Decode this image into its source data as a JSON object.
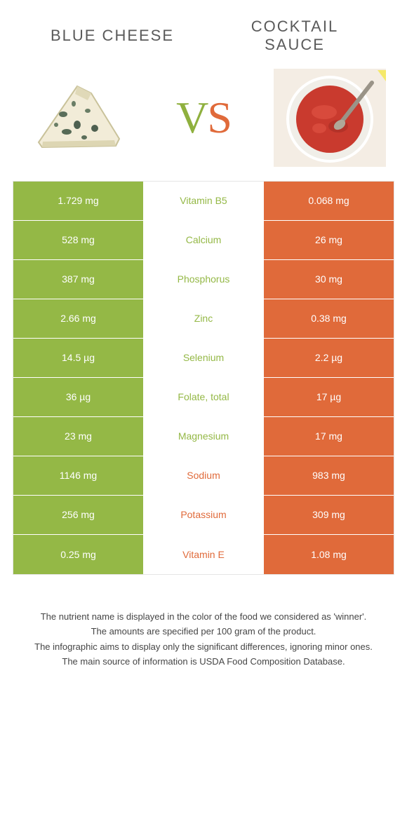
{
  "colors": {
    "green": "#94b846",
    "orange": "#e06a3a",
    "mid_bg": "#ffffff",
    "border": "#e5e5e5"
  },
  "header": {
    "left_title": "BLUE CHEESE",
    "right_title_line1": "COCKTAIL",
    "right_title_line2": "SAUCE",
    "vs_v": "V",
    "vs_s": "S"
  },
  "rows": [
    {
      "left": "1.729 mg",
      "label": "Vitamin B5",
      "right": "0.068 mg",
      "winner": "left"
    },
    {
      "left": "528 mg",
      "label": "Calcium",
      "right": "26 mg",
      "winner": "left"
    },
    {
      "left": "387 mg",
      "label": "Phosphorus",
      "right": "30 mg",
      "winner": "left"
    },
    {
      "left": "2.66 mg",
      "label": "Zinc",
      "right": "0.38 mg",
      "winner": "left"
    },
    {
      "left": "14.5 µg",
      "label": "Selenium",
      "right": "2.2 µg",
      "winner": "left"
    },
    {
      "left": "36 µg",
      "label": "Folate, total",
      "right": "17 µg",
      "winner": "left"
    },
    {
      "left": "23 mg",
      "label": "Magnesium",
      "right": "17 mg",
      "winner": "left"
    },
    {
      "left": "1146 mg",
      "label": "Sodium",
      "right": "983 mg",
      "winner": "right"
    },
    {
      "left": "256 mg",
      "label": "Potassium",
      "right": "309 mg",
      "winner": "right"
    },
    {
      "left": "0.25 mg",
      "label": "Vitamin E",
      "right": "1.08 mg",
      "winner": "right"
    }
  ],
  "footer": {
    "line1": "The nutrient name is displayed in the color of the food we considered as 'winner'.",
    "line2": "The amounts are specified per 100 gram of the product.",
    "line3": "The infographic aims to display only the significant differences, ignoring minor ones.",
    "line4": "The main source of information is USDA Food Composition Database."
  }
}
